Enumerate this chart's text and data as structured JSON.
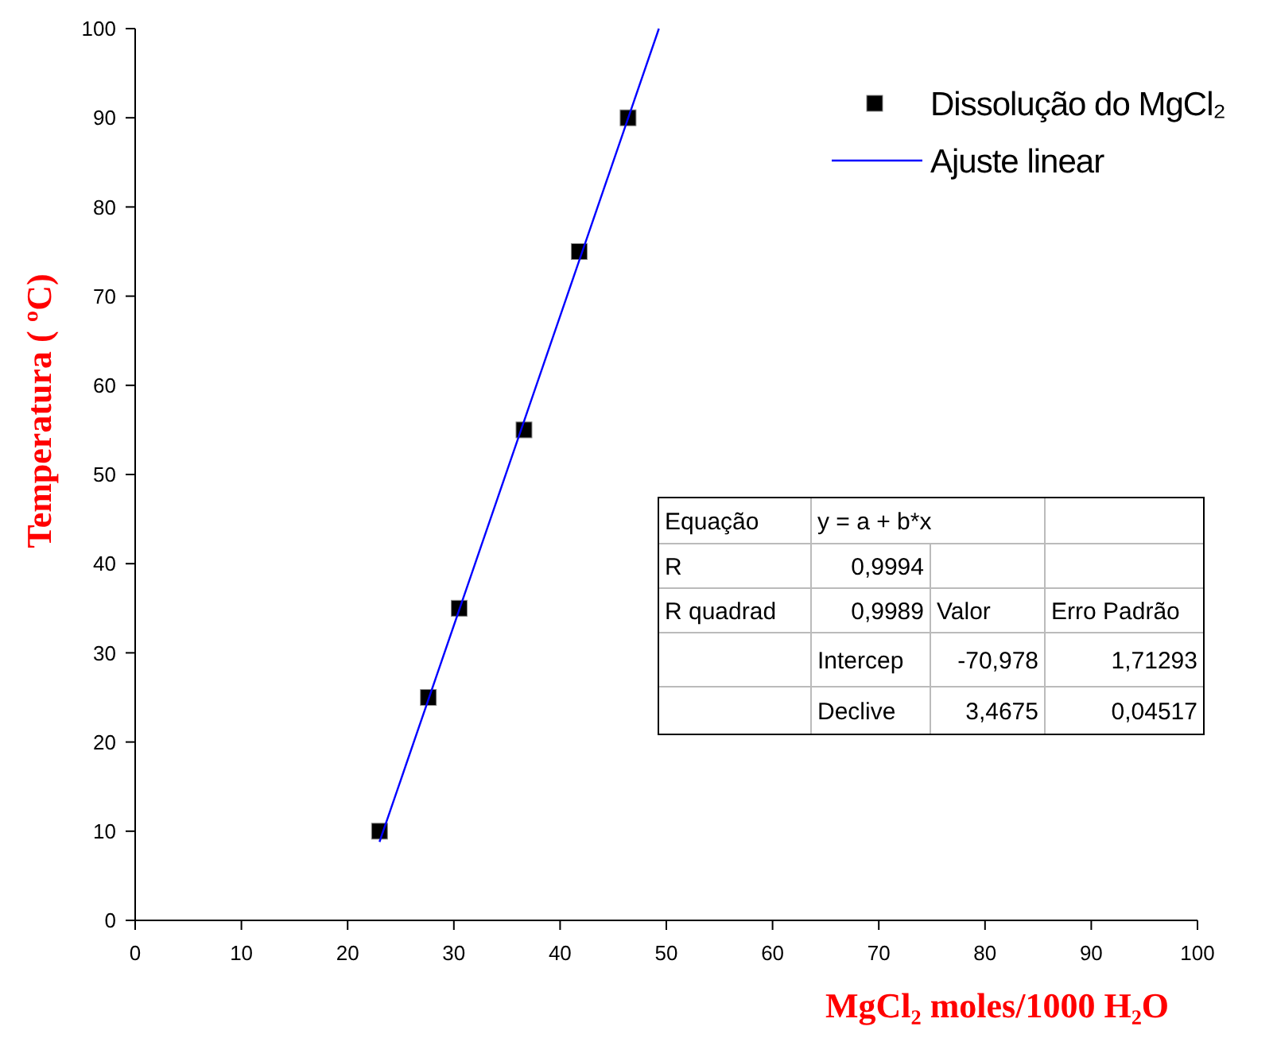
{
  "chart_data": {
    "type": "scatter",
    "xlabel": "MgCl₂ moles/1000 H₂O",
    "ylabel": "Temperatura ( ºC)",
    "xlim": [
      0,
      100
    ],
    "xticks": [
      0,
      10,
      20,
      30,
      40,
      50,
      60,
      70,
      80,
      90,
      100
    ],
    "ylim": [
      0,
      100
    ],
    "yticks": [
      0,
      10,
      20,
      30,
      40,
      50,
      60,
      70,
      80,
      90,
      100
    ],
    "grid": false,
    "legend": "top right",
    "series": [
      {
        "name": "Dissolução do MgCl₂",
        "marker": "square",
        "color": "#000000",
        "x": [
          23,
          27.6,
          30.5,
          36.6,
          41.8,
          46.4
        ],
        "values": [
          10,
          25,
          35,
          55,
          75,
          90
        ]
      },
      {
        "name": "Ajuste linear",
        "type": "line",
        "marker": "none",
        "line_style": "solid",
        "color": "#0000ff",
        "x": [
          23,
          49.3
        ],
        "values": [
          8.8,
          100
        ]
      }
    ],
    "annotations": [
      "Equação",
      "y = a + b*x",
      "R",
      "0,9994",
      "R quadrad",
      "0,9989",
      "Valor",
      "Erro Padrão",
      "Intercep",
      "-70,978",
      "1,71293",
      "Declive",
      "3,4675",
      "0,04517"
    ]
  }
}
